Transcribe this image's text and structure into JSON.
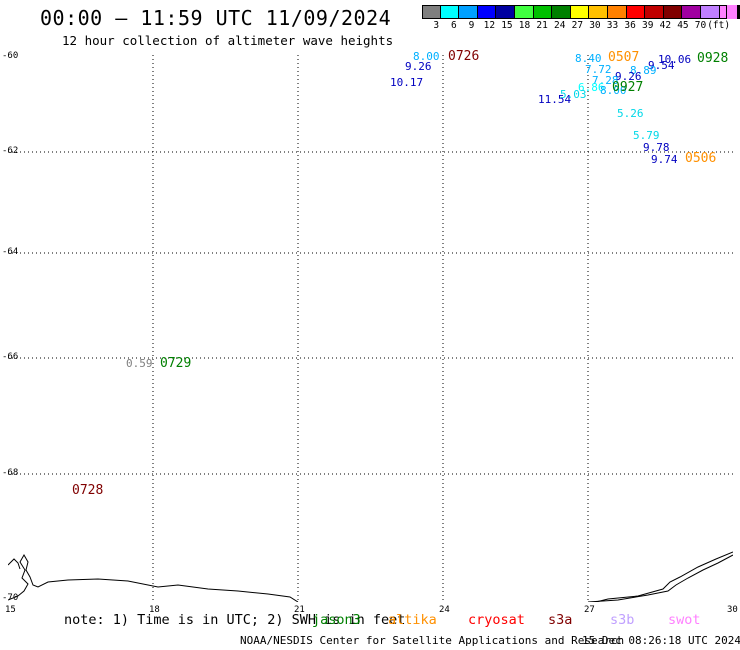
{
  "header": {
    "title": "00:00 – 11:59 UTC 11/09/2024",
    "subtitle": "12 hour collection of altimeter wave heights"
  },
  "color_scale": {
    "colors": [
      "#7f7f7f",
      "#00ffff",
      "#00a0ff",
      "#0000ff",
      "#0000a0",
      "#40ff40",
      "#00c000",
      "#008000",
      "#ffff00",
      "#ffc000",
      "#ff8000",
      "#ff0000",
      "#c00000",
      "#800000",
      "#a000a0",
      "#c080ff",
      "#ff80ff",
      "#000000"
    ],
    "labels": [
      "3",
      "6",
      "9",
      "12",
      "15",
      "18",
      "21",
      "24",
      "27",
      "30",
      "33",
      "36",
      "39",
      "42",
      "45",
      "70",
      "(ft)"
    ]
  },
  "axes": {
    "lat_labels": [
      "-60",
      "-62",
      "-64",
      "-66",
      "-68",
      "-70"
    ],
    "lon_labels": [
      "15",
      "18",
      "21",
      "24",
      "27",
      "30"
    ]
  },
  "wave_heights": [
    {
      "text": "8.00",
      "color": "#00b0ff"
    },
    {
      "text": "9.26",
      "color": "#0000c0"
    },
    {
      "text": "10.17",
      "color": "#0000c0"
    },
    {
      "text": "8.40",
      "color": "#00b0ff"
    },
    {
      "text": "7.72",
      "color": "#00b0ff"
    },
    {
      "text": "10.06",
      "color": "#0000c0"
    },
    {
      "text": "9.54",
      "color": "#0000c0"
    },
    {
      "text": "8.89",
      "color": "#00b0ff"
    },
    {
      "text": "9.26",
      "color": "#0000c0"
    },
    {
      "text": "7.28",
      "color": "#00b0ff"
    },
    {
      "text": "6.86",
      "color": "#00ffff"
    },
    {
      "text": "8.00",
      "color": "#00b0ff"
    },
    {
      "text": "11.54",
      "color": "#0000c0"
    },
    {
      "text": "5.03",
      "color": "#00d8e8"
    },
    {
      "text": "5.26",
      "color": "#00d8e8"
    },
    {
      "text": "5.79",
      "color": "#00d8e8"
    },
    {
      "text": "9.78",
      "color": "#0000c0"
    },
    {
      "text": "9.74",
      "color": "#0000c0"
    },
    {
      "text": "0.59",
      "color": "#7f7f7f"
    }
  ],
  "pass_times": [
    {
      "text": "0726",
      "color": "#800000"
    },
    {
      "text": "0507",
      "color": "#ff9000"
    },
    {
      "text": "0928",
      "color": "#008000"
    },
    {
      "text": "0927",
      "color": "#008000"
    },
    {
      "text": "0506",
      "color": "#ff9000"
    },
    {
      "text": "0729",
      "color": "#008000"
    },
    {
      "text": "0728",
      "color": "#800000"
    }
  ],
  "legend": {
    "note": "note: 1) Time is in UTC; 2) SWH is in feet",
    "satellites": [
      {
        "name": "jason3",
        "color": "#008000"
      },
      {
        "name": "altika",
        "color": "#ff9000"
      },
      {
        "name": "cryosat",
        "color": "#ff0000"
      },
      {
        "name": "s3a",
        "color": "#800000"
      },
      {
        "name": "s3b",
        "color": "#c0a0ff"
      },
      {
        "name": "swot",
        "color": "#ff80ff"
      }
    ]
  },
  "footer": {
    "source": "NOAA/NESDIS Center for Satellite Applications and Research",
    "timestamp": "15 Dec 08:26:18 UTC 2024"
  }
}
